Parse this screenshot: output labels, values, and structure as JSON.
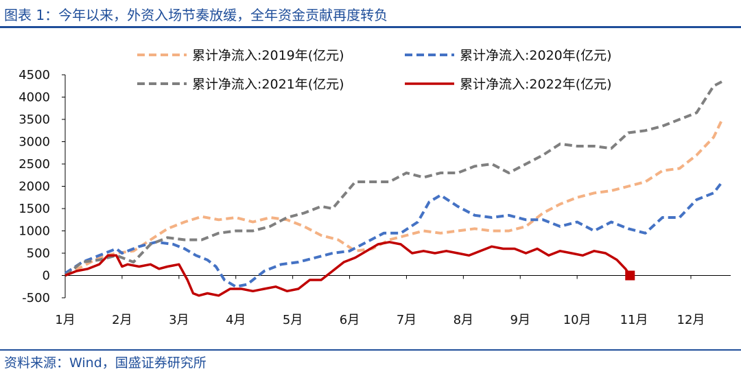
{
  "header": {
    "title": "图表 1：今年以来，外资入场节奏放缓，全年资金贡献再度转负"
  },
  "footer": {
    "source": "资料来源：Wind，国盛证券研究所"
  },
  "colors": {
    "s2019": "#f4b183",
    "s2020": "#4472c4",
    "s2021": "#7f7f7f",
    "s2022": "#c00000",
    "frame": "#1f4e9a"
  },
  "chart_data": {
    "type": "line",
    "x_unit": "month",
    "categories": [
      "1月",
      "2月",
      "3月",
      "4月",
      "5月",
      "6月",
      "7月",
      "8月",
      "9月",
      "10月",
      "11月",
      "12月"
    ],
    "ylim": [
      -500,
      4500
    ],
    "yticks": [
      4500,
      4000,
      3500,
      3000,
      2500,
      2000,
      1500,
      1000,
      500,
      0,
      -500
    ],
    "ytick_labels": [
      "4500",
      "4000",
      "3500",
      "3000",
      "2500",
      "2000",
      "1500",
      "1000",
      "500",
      "0",
      "-500"
    ],
    "legend": "top",
    "series": [
      {
        "name": "累计净流入:2019年(亿元)",
        "style": "dashed",
        "x": [
          0,
          0.3,
          0.6,
          0.9,
          1.2,
          1.5,
          1.8,
          2.1,
          2.4,
          2.7,
          3.0,
          3.3,
          3.6,
          3.9,
          4.2,
          4.5,
          4.8,
          5.1,
          5.4,
          5.7,
          6.0,
          6.3,
          6.6,
          6.9,
          7.2,
          7.5,
          7.8,
          8.1,
          8.4,
          8.7,
          9.0,
          9.3,
          9.6,
          9.9,
          10.2,
          10.5,
          10.8,
          11.1,
          11.4,
          11.55
        ],
        "values": [
          0,
          200,
          400,
          500,
          550,
          800,
          1050,
          1200,
          1320,
          1250,
          1300,
          1200,
          1300,
          1250,
          1100,
          900,
          800,
          550,
          600,
          800,
          900,
          1000,
          950,
          1000,
          1050,
          1000,
          1000,
          1100,
          1400,
          1600,
          1750,
          1850,
          1900,
          2000,
          2100,
          2350,
          2400,
          2700,
          3100,
          3500
        ]
      },
      {
        "name": "累计净流入:2020年(亿元)",
        "style": "dashed",
        "x": [
          0,
          0.3,
          0.6,
          0.9,
          1.0,
          1.3,
          1.6,
          1.9,
          2.1,
          2.3,
          2.5,
          2.65,
          2.8,
          3.0,
          3.2,
          3.5,
          3.8,
          4.1,
          4.4,
          4.7,
          5.0,
          5.3,
          5.6,
          5.9,
          6.2,
          6.4,
          6.6,
          6.9,
          7.2,
          7.5,
          7.8,
          8.1,
          8.4,
          8.7,
          9.0,
          9.3,
          9.6,
          9.9,
          10.2,
          10.5,
          10.8,
          11.1,
          11.4,
          11.55
        ],
        "values": [
          50,
          300,
          450,
          600,
          500,
          650,
          750,
          700,
          600,
          450,
          350,
          200,
          -100,
          -250,
          -200,
          100,
          250,
          300,
          400,
          500,
          550,
          750,
          950,
          950,
          1200,
          1650,
          1800,
          1550,
          1350,
          1300,
          1350,
          1250,
          1250,
          1100,
          1200,
          1000,
          1200,
          1050,
          950,
          1300,
          1300,
          1700,
          1850,
          2100
        ]
      },
      {
        "name": "累计净流入:2021年(亿元)",
        "style": "dashed",
        "x": [
          0,
          0.3,
          0.6,
          0.9,
          1.2,
          1.5,
          1.8,
          2.1,
          2.4,
          2.7,
          3.0,
          3.3,
          3.6,
          3.9,
          4.2,
          4.5,
          4.7,
          4.8,
          5.1,
          5.4,
          5.7,
          6.0,
          6.3,
          6.6,
          6.9,
          7.2,
          7.5,
          7.8,
          8.1,
          8.4,
          8.7,
          9.0,
          9.3,
          9.6,
          9.9,
          10.2,
          10.5,
          10.8,
          11.1,
          11.4,
          11.55
        ],
        "values": [
          0,
          300,
          350,
          450,
          300,
          700,
          850,
          800,
          800,
          950,
          1000,
          1000,
          1100,
          1300,
          1400,
          1550,
          1500,
          1650,
          2100,
          2100,
          2100,
          2300,
          2200,
          2300,
          2300,
          2450,
          2500,
          2300,
          2500,
          2700,
          2950,
          2900,
          2900,
          2850,
          3200,
          3250,
          3350,
          3500,
          3650,
          4250,
          4350
        ]
      },
      {
        "name": "累计净流入:2022年(亿元)",
        "style": "solid",
        "x": [
          0,
          0.2,
          0.4,
          0.6,
          0.75,
          0.9,
          1.0,
          1.1,
          1.3,
          1.5,
          1.65,
          1.8,
          2.0,
          2.15,
          2.25,
          2.35,
          2.5,
          2.7,
          2.9,
          3.1,
          3.3,
          3.5,
          3.7,
          3.9,
          4.1,
          4.3,
          4.5,
          4.7,
          4.9,
          5.1,
          5.3,
          5.5,
          5.7,
          5.9,
          6.1,
          6.3,
          6.5,
          6.7,
          6.9,
          7.1,
          7.3,
          7.5,
          7.7,
          7.9,
          8.1,
          8.3,
          8.5,
          8.7,
          8.9,
          9.1,
          9.3,
          9.5,
          9.7,
          9.85,
          9.93
        ],
        "values": [
          0,
          100,
          150,
          250,
          450,
          450,
          200,
          250,
          200,
          250,
          150,
          200,
          250,
          -100,
          -400,
          -450,
          -400,
          -450,
          -300,
          -300,
          -350,
          -300,
          -250,
          -350,
          -300,
          -100,
          -100,
          100,
          300,
          400,
          550,
          700,
          750,
          700,
          500,
          550,
          500,
          550,
          500,
          450,
          550,
          650,
          600,
          600,
          500,
          600,
          450,
          550,
          500,
          450,
          550,
          500,
          350,
          150,
          0
        ]
      }
    ],
    "end_marker": {
      "series": "累计净流入:2022年(亿元)",
      "x": 9.93,
      "value": 0
    }
  }
}
